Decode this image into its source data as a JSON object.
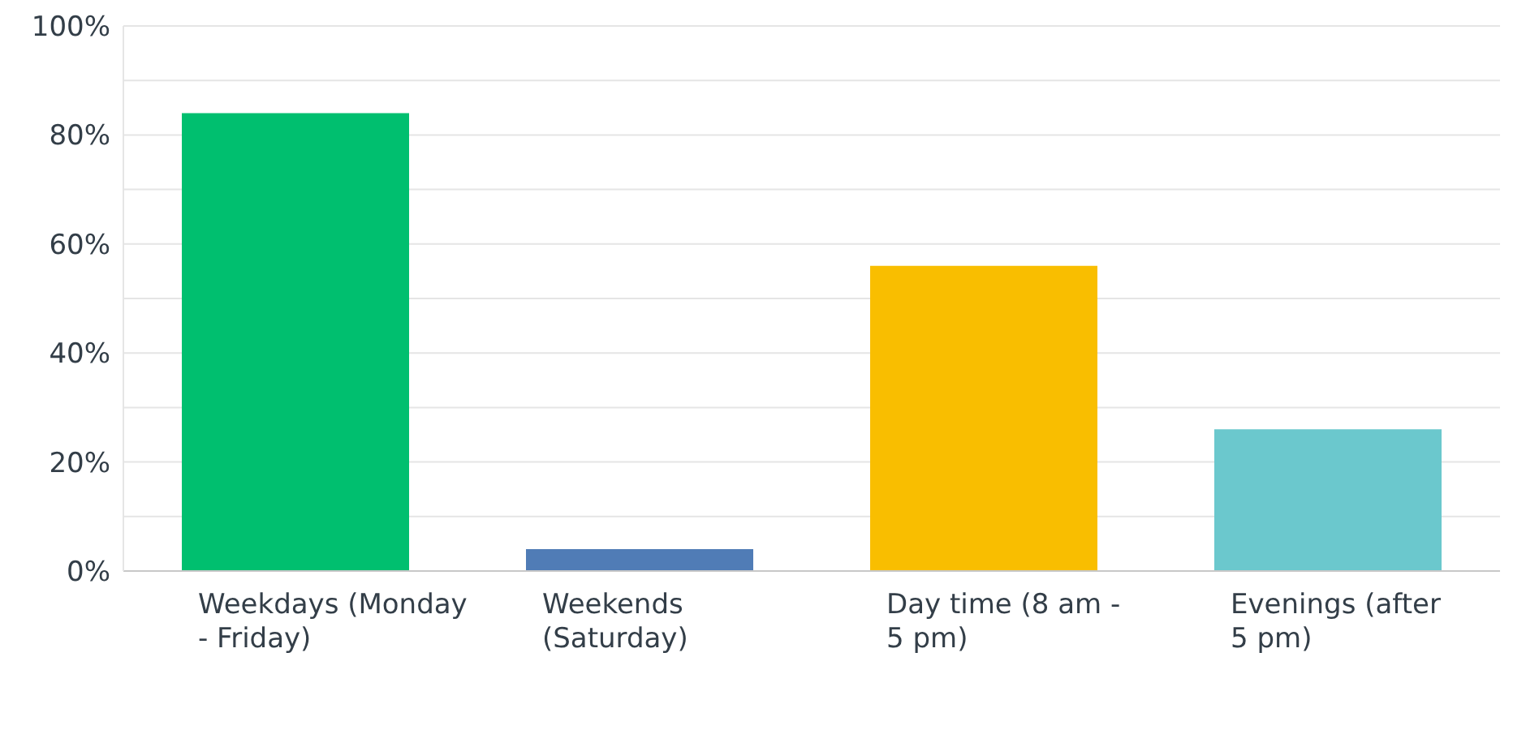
{
  "chart_data": {
    "type": "bar",
    "categories": [
      "Weekdays (Monday - Friday)",
      "Weekends (Saturday)",
      "Day time (8 am - 5 pm)",
      "Evenings (after 5 pm)"
    ],
    "values": [
      84,
      4,
      56,
      26
    ],
    "colors": [
      "#00bf6f",
      "#507cb6",
      "#f9be00",
      "#6bc8cd"
    ],
    "ylim": [
      0,
      100
    ],
    "yticks": [
      {
        "value": 0,
        "label": "0%"
      },
      {
        "value": 10,
        "label": null
      },
      {
        "value": 20,
        "label": "20%"
      },
      {
        "value": 30,
        "label": null
      },
      {
        "value": 40,
        "label": "40%"
      },
      {
        "value": 50,
        "label": null
      },
      {
        "value": 60,
        "label": "60%"
      },
      {
        "value": 70,
        "label": null
      },
      {
        "value": 80,
        "label": "80%"
      },
      {
        "value": 90,
        "label": null
      },
      {
        "value": 100,
        "label": "100%"
      }
    ],
    "grid": "y"
  }
}
